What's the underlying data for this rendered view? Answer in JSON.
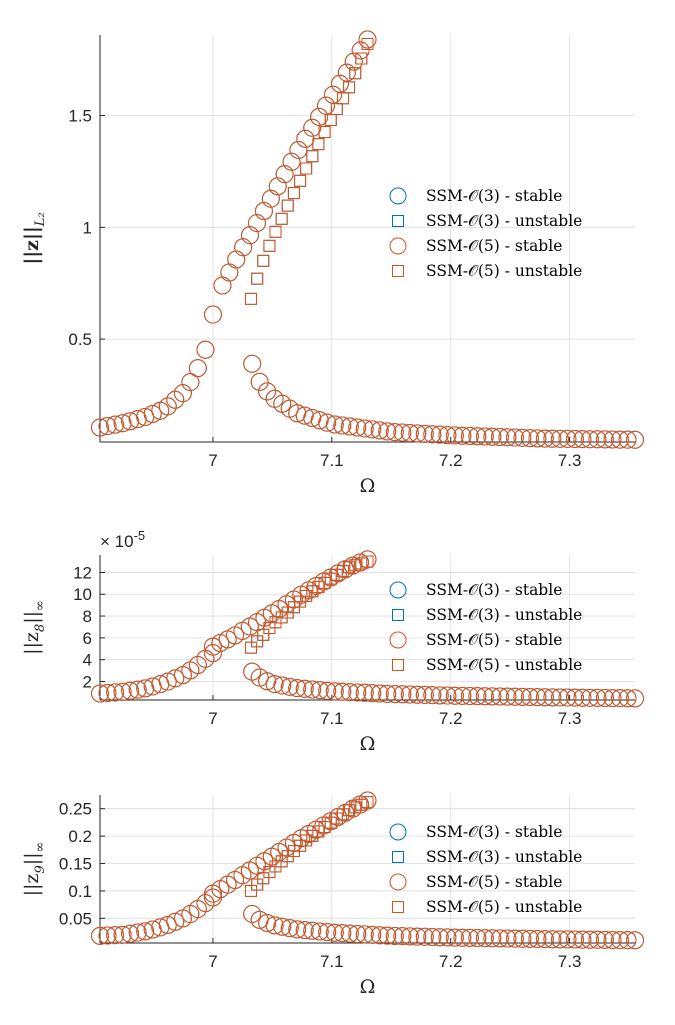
{
  "colors": {
    "blue": "#0072BD",
    "orange": "#D95319"
  },
  "chart_data": [
    {
      "type": "scatter",
      "title": "",
      "xlabel": "Ω",
      "ylabel_main": "||z||",
      "ylabel_sub": "L₂",
      "xlim": [
        6.905,
        7.355
      ],
      "ylim": [
        0.04,
        1.86
      ],
      "xticks": [
        7,
        7.1,
        7.2,
        7.3
      ],
      "xtick_labels": [
        "7",
        "7.1",
        "7.2",
        "7.3"
      ],
      "yticks": [
        0.5,
        1,
        1.5
      ],
      "ytick_labels": [
        "0.5",
        "1",
        "1.5"
      ],
      "exponent_label": "",
      "grid": true,
      "legend_position": "right",
      "series": [
        {
          "name": "SSM-𝒪(3) - stable",
          "marker": "circle",
          "color": "blue",
          "x": [],
          "y": []
        },
        {
          "name": "SSM-𝒪(3) - unstable",
          "marker": "square",
          "color": "blue",
          "x": [],
          "y": []
        },
        {
          "name": "SSM-𝒪(5) - stable",
          "marker": "circle",
          "color": "orange",
          "x": [],
          "y": []
        },
        {
          "name": "SSM-𝒪(5) - unstable",
          "marker": "square",
          "color": "orange",
          "x": [],
          "y": []
        }
      ],
      "curve": {
        "lower": [
          [
            6.905,
            0.105
          ],
          [
            6.925,
            0.125
          ],
          [
            6.945,
            0.155
          ],
          [
            6.96,
            0.19
          ],
          [
            6.975,
            0.26
          ],
          [
            6.985,
            0.34
          ],
          [
            6.995,
            0.47
          ],
          [
            7.0,
            0.61
          ]
        ],
        "upper": [
          [
            7.008,
            0.74
          ],
          [
            7.02,
            0.86
          ],
          [
            7.035,
            1.0
          ],
          [
            7.05,
            1.14
          ],
          [
            7.07,
            1.33
          ],
          [
            7.09,
            1.5
          ],
          [
            7.11,
            1.67
          ],
          [
            7.13,
            1.84
          ]
        ],
        "unstable": [
          [
            7.032,
            0.68
          ],
          [
            7.04,
            0.82
          ],
          [
            7.05,
            0.95
          ],
          [
            7.065,
            1.12
          ],
          [
            7.08,
            1.28
          ],
          [
            7.1,
            1.49
          ],
          [
            7.115,
            1.63
          ],
          [
            7.13,
            1.82
          ]
        ],
        "decay": [
          [
            7.033,
            0.39
          ],
          [
            7.04,
            0.3
          ],
          [
            7.05,
            0.24
          ],
          [
            7.07,
            0.17
          ],
          [
            7.1,
            0.12
          ],
          [
            7.15,
            0.085
          ],
          [
            7.2,
            0.07
          ],
          [
            7.28,
            0.055
          ],
          [
            7.355,
            0.05
          ]
        ]
      }
    },
    {
      "type": "scatter",
      "title": "",
      "xlabel": "Ω",
      "ylabel_main": "||z",
      "ylabel_sub": "8",
      "ylabel_suffix": "||",
      "ylabel_sub2": "∞",
      "xlim": [
        6.905,
        7.355
      ],
      "ylim": [
        0.3,
        13.6
      ],
      "xticks": [
        7,
        7.1,
        7.2,
        7.3
      ],
      "xtick_labels": [
        "7",
        "7.1",
        "7.2",
        "7.3"
      ],
      "yticks": [
        2,
        4,
        6,
        8,
        10,
        12
      ],
      "ytick_labels": [
        "2",
        "4",
        "6",
        "8",
        "10",
        "12"
      ],
      "exponent_label": "× 10",
      "exponent_power": "-5",
      "grid": true,
      "legend_position": "right",
      "series": [
        {
          "name": "SSM-𝒪(3) - stable",
          "marker": "circle",
          "color": "blue",
          "x": [],
          "y": []
        },
        {
          "name": "SSM-𝒪(3) - unstable",
          "marker": "square",
          "color": "blue",
          "x": [],
          "y": []
        },
        {
          "name": "SSM-𝒪(5) - stable",
          "marker": "circle",
          "color": "orange",
          "x": [],
          "y": []
        },
        {
          "name": "SSM-𝒪(5) - unstable",
          "marker": "square",
          "color": "orange",
          "x": [],
          "y": []
        }
      ],
      "curve": {
        "lower": [
          [
            6.905,
            0.9
          ],
          [
            6.925,
            1.05
          ],
          [
            6.945,
            1.4
          ],
          [
            6.96,
            1.9
          ],
          [
            6.975,
            2.6
          ],
          [
            6.985,
            3.3
          ],
          [
            6.995,
            4.2
          ],
          [
            7.0,
            4.6
          ]
        ],
        "upper": [
          [
            7.0,
            5.2
          ],
          [
            7.015,
            6.0
          ],
          [
            7.035,
            7.3
          ],
          [
            7.055,
            8.6
          ],
          [
            7.075,
            10.0
          ],
          [
            7.095,
            11.3
          ],
          [
            7.115,
            12.5
          ],
          [
            7.13,
            13.2
          ]
        ],
        "unstable": [
          [
            7.032,
            5.1
          ],
          [
            7.04,
            6.0
          ],
          [
            7.05,
            7.2
          ],
          [
            7.065,
            8.5
          ],
          [
            7.08,
            10.0
          ],
          [
            7.1,
            11.5
          ],
          [
            7.115,
            12.5
          ],
          [
            7.13,
            13.0
          ]
        ],
        "decay": [
          [
            7.033,
            2.9
          ],
          [
            7.04,
            2.3
          ],
          [
            7.05,
            1.8
          ],
          [
            7.07,
            1.4
          ],
          [
            7.1,
            1.1
          ],
          [
            7.15,
            0.85
          ],
          [
            7.2,
            0.7
          ],
          [
            7.28,
            0.55
          ],
          [
            7.355,
            0.45
          ]
        ]
      }
    },
    {
      "type": "scatter",
      "title": "",
      "xlabel": "Ω",
      "ylabel_main": "||z",
      "ylabel_sub": "9",
      "ylabel_suffix": "||",
      "ylabel_sub2": "∞",
      "xlim": [
        6.905,
        7.355
      ],
      "ylim": [
        0.005,
        0.275
      ],
      "xticks": [
        7,
        7.1,
        7.2,
        7.3
      ],
      "xtick_labels": [
        "7",
        "7.1",
        "7.2",
        "7.3"
      ],
      "yticks": [
        0.05,
        0.1,
        0.15,
        0.2,
        0.25
      ],
      "ytick_labels": [
        "0.05",
        "0.1",
        "0.15",
        "0.2",
        "0.25"
      ],
      "exponent_label": "",
      "grid": true,
      "legend_position": "right",
      "series": [
        {
          "name": "SSM-𝒪(3) - stable",
          "marker": "circle",
          "color": "blue",
          "x": [],
          "y": []
        },
        {
          "name": "SSM-𝒪(3) - unstable",
          "marker": "square",
          "color": "blue",
          "x": [],
          "y": []
        },
        {
          "name": "SSM-𝒪(5) - stable",
          "marker": "circle",
          "color": "orange",
          "x": [],
          "y": []
        },
        {
          "name": "SSM-𝒪(5) - unstable",
          "marker": "square",
          "color": "orange",
          "x": [],
          "y": []
        }
      ],
      "curve": {
        "lower": [
          [
            6.905,
            0.018
          ],
          [
            6.925,
            0.02
          ],
          [
            6.945,
            0.027
          ],
          [
            6.96,
            0.036
          ],
          [
            6.975,
            0.05
          ],
          [
            6.985,
            0.063
          ],
          [
            6.995,
            0.08
          ],
          [
            7.0,
            0.088
          ]
        ],
        "upper": [
          [
            7.0,
            0.095
          ],
          [
            7.015,
            0.115
          ],
          [
            7.035,
            0.143
          ],
          [
            7.055,
            0.17
          ],
          [
            7.075,
            0.197
          ],
          [
            7.095,
            0.222
          ],
          [
            7.115,
            0.247
          ],
          [
            7.13,
            0.265
          ]
        ],
        "unstable": [
          [
            7.032,
            0.1
          ],
          [
            7.04,
            0.118
          ],
          [
            7.05,
            0.14
          ],
          [
            7.065,
            0.167
          ],
          [
            7.08,
            0.195
          ],
          [
            7.1,
            0.226
          ],
          [
            7.115,
            0.248
          ],
          [
            7.13,
            0.262
          ]
        ],
        "decay": [
          [
            7.033,
            0.058
          ],
          [
            7.04,
            0.046
          ],
          [
            7.05,
            0.038
          ],
          [
            7.07,
            0.03
          ],
          [
            7.1,
            0.024
          ],
          [
            7.15,
            0.018
          ],
          [
            7.2,
            0.015
          ],
          [
            7.28,
            0.012
          ],
          [
            7.355,
            0.01
          ]
        ]
      }
    }
  ]
}
